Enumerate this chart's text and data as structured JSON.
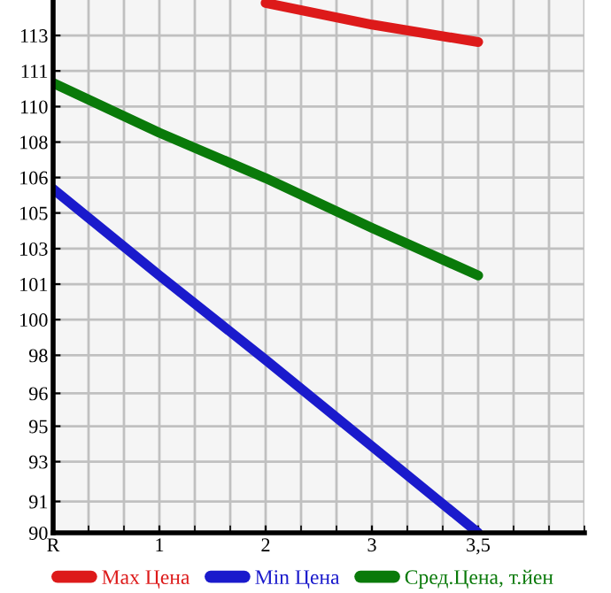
{
  "chart_data": {
    "type": "line",
    "categories": [
      "R",
      "1",
      "2",
      "3",
      "3,5"
    ],
    "series": [
      {
        "name": "Max Цена",
        "color": "#dd1a1a",
        "values": [
          null,
          null,
          114.5,
          113.5,
          112.7
        ]
      },
      {
        "name": "Min Цена",
        "color": "#1a1acc",
        "values": [
          105.9,
          101.9,
          98.0,
          94.0,
          90.0
        ]
      },
      {
        "name": "Сред.Цена, т.йен",
        "color": "#0a7a0a",
        "values": [
          110.8,
          108.5,
          106.4,
          104.1,
          101.9
        ]
      }
    ],
    "ylim": [
      90,
      114.64
    ],
    "yticks": [
      90,
      {
        "value": 91.45,
        "label": "91"
      },
      {
        "value": 93.29,
        "label": "93"
      },
      {
        "value": 94.93,
        "label": "95"
      },
      {
        "value": 96.45,
        "label": "96"
      },
      {
        "value": 98.21,
        "label": "98"
      },
      {
        "value": 99.86,
        "label": "100"
      },
      {
        "value": 101.5,
        "label": "101"
      },
      {
        "value": 103.14,
        "label": "103"
      },
      {
        "value": 104.79,
        "label": "105"
      },
      {
        "value": 106.43,
        "label": "106"
      },
      {
        "value": 108.07,
        "label": "108"
      },
      {
        "value": 109.71,
        "label": "110"
      },
      {
        "value": 111.36,
        "label": "111"
      },
      113
    ],
    "grid": true,
    "legend": "bottom",
    "marker": "none",
    "line_style": "solid"
  }
}
